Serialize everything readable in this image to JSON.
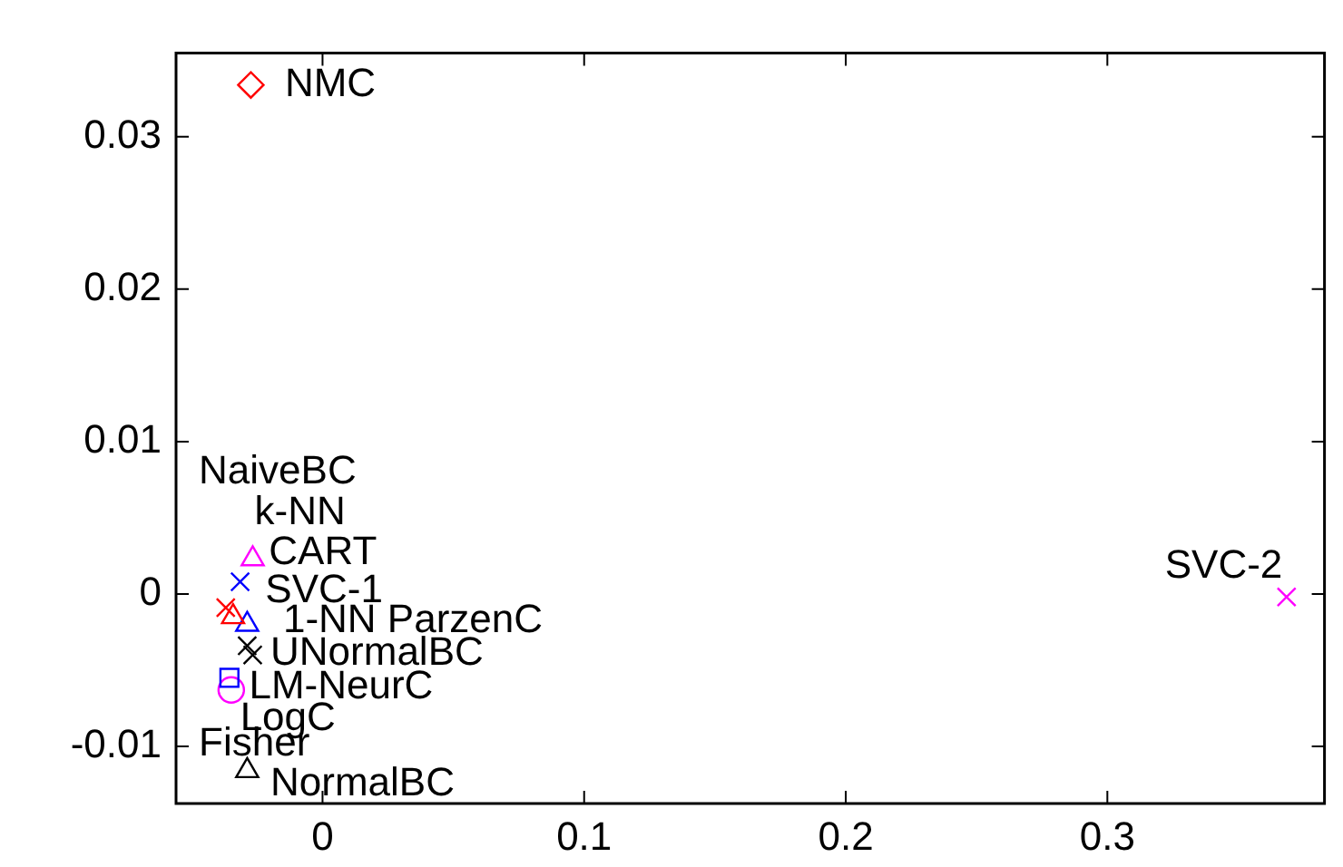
{
  "chart_data": {
    "type": "scatter",
    "xlim": [
      -0.056,
      0.383
    ],
    "ylim": [
      -0.01375,
      0.0355
    ],
    "xticks": [
      0,
      0.1,
      0.2,
      0.3
    ],
    "yticks": [
      -0.01,
      0,
      0.01,
      0.02,
      0.03
    ],
    "grid": false,
    "legend": false,
    "series": [
      {
        "color": "#ff0000",
        "marker": "diamond",
        "x": [
          -0.0274
        ],
        "values": [
          0.0334
        ]
      },
      {
        "color": "#ff00ff",
        "marker": "cross",
        "x": [
          0.3685
        ],
        "values": [
          -0.0002
        ]
      },
      {
        "color": "#ff00ff",
        "marker": "triangle",
        "x": [
          -0.0267
        ],
        "values": [
          0.0023
        ]
      },
      {
        "color": "#0000ff",
        "marker": "cross",
        "x": [
          -0.0315
        ],
        "values": [
          0.0008
        ]
      },
      {
        "color": "#ff0000",
        "marker": "cross",
        "x": [
          -0.037
        ],
        "values": [
          -0.0009
        ]
      },
      {
        "color": "#ff0000",
        "marker": "triangle",
        "x": [
          -0.0342
        ],
        "values": [
          -0.0015
        ]
      },
      {
        "color": "#0000ff",
        "marker": "triangle",
        "x": [
          -0.0288
        ],
        "values": [
          -0.002
        ]
      },
      {
        "color": "#000000",
        "marker": "cross",
        "x": [
          -0.0288
        ],
        "values": [
          -0.0034
        ]
      },
      {
        "color": "#000000",
        "marker": "cross",
        "x": [
          -0.0267
        ],
        "values": [
          -0.004
        ]
      },
      {
        "color": "#0000ff",
        "marker": "square",
        "x": [
          -0.0356
        ],
        "values": [
          -0.0055
        ]
      },
      {
        "color": "#ff00ff",
        "marker": "circle",
        "x": [
          -0.0349
        ],
        "values": [
          -0.0063
        ]
      },
      {
        "color": "#000000",
        "marker": "triangle",
        "x": [
          -0.0288
        ],
        "values": [
          -0.0116
        ]
      }
    ],
    "annotations": [
      "NMC",
      "SVC-2",
      "NaiveBC",
      "k-NN",
      "CART",
      "SVC-1",
      "1-NN ParzenC",
      "UNormalBC",
      "LM-NeurC",
      "LogC",
      "Fisher",
      "NormalBC"
    ]
  }
}
